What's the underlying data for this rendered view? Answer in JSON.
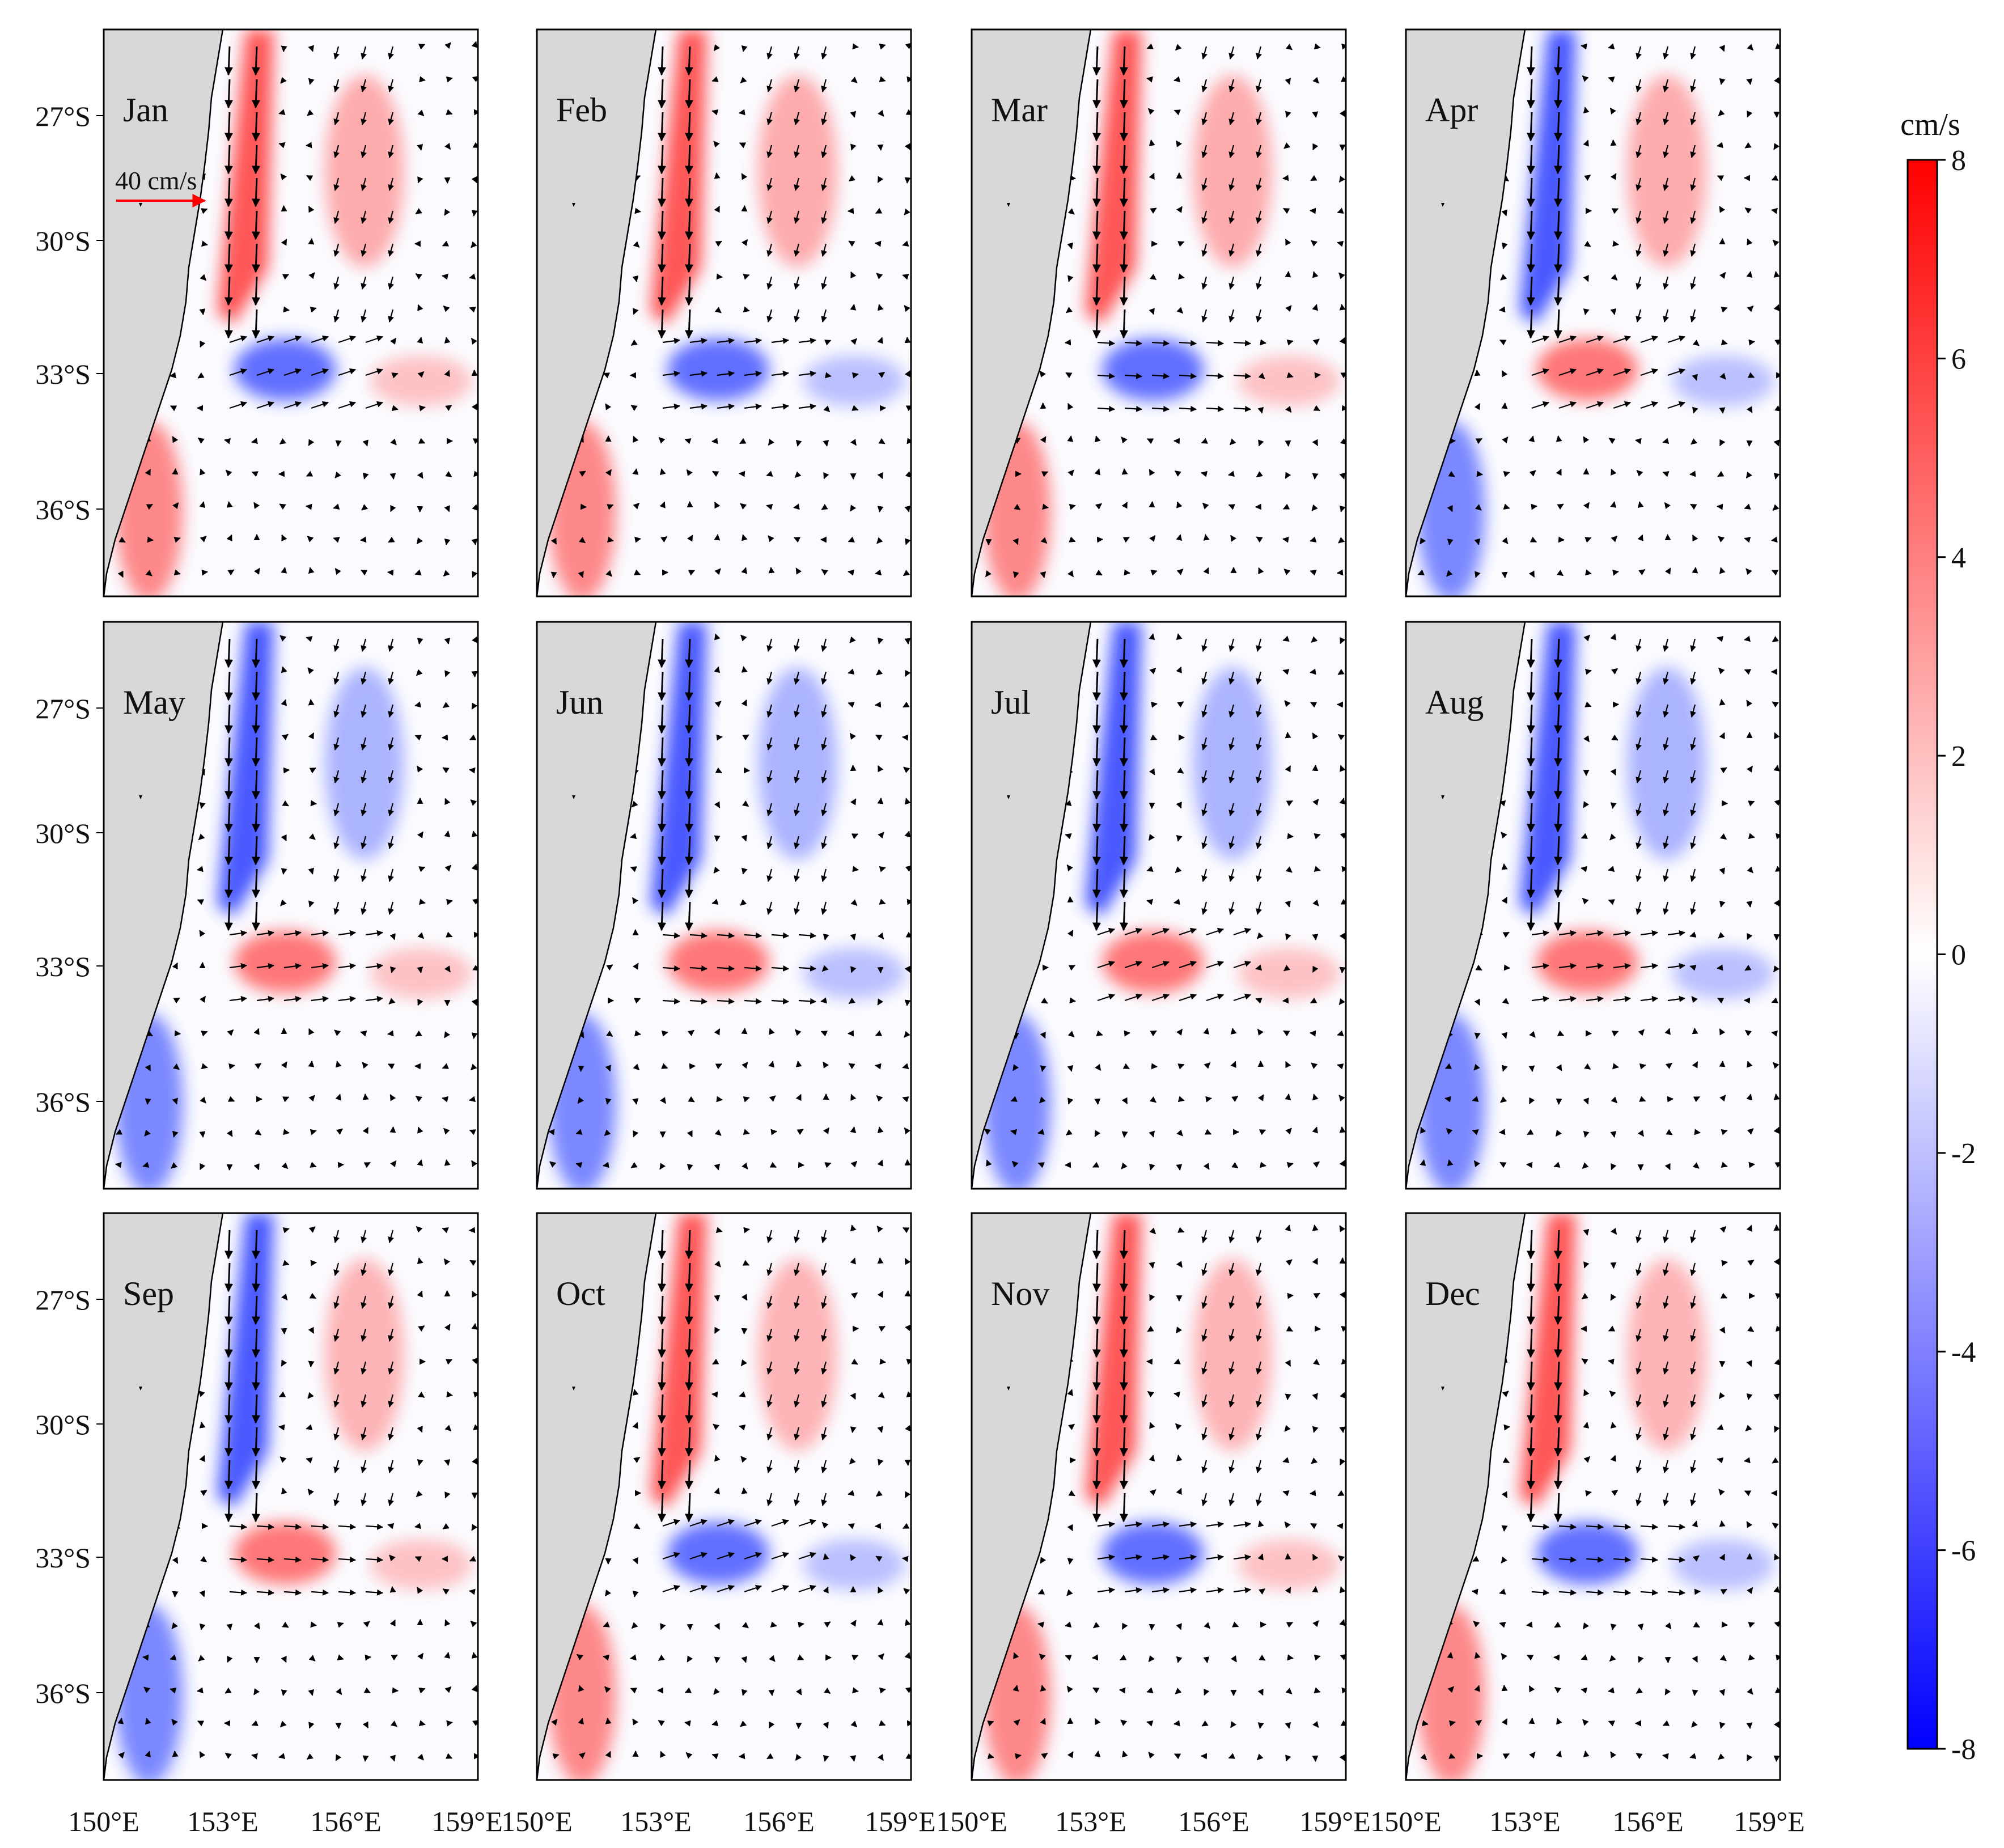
{
  "figure": {
    "panels": [
      {
        "month": "Jan"
      },
      {
        "month": "Feb"
      },
      {
        "month": "Mar"
      },
      {
        "month": "Apr"
      },
      {
        "month": "May"
      },
      {
        "month": "Jun"
      },
      {
        "month": "Jul"
      },
      {
        "month": "Aug"
      },
      {
        "month": "Sep"
      },
      {
        "month": "Oct"
      },
      {
        "month": "Nov"
      },
      {
        "month": "Dec"
      }
    ],
    "lat_ticks": [
      "27°S",
      "30°S",
      "33°S",
      "36°S"
    ],
    "lon_ticks": [
      "150°E",
      "153°E",
      "156°E",
      "159°E"
    ],
    "reference_vector": "40 cm/s",
    "reference_color": "#ff0000",
    "colorbar": {
      "unit": "cm/s",
      "ticks": [
        "8",
        "6",
        "4",
        "2",
        "0",
        "-2",
        "-4",
        "-6",
        "-8"
      ],
      "colors": {
        "max": "#ff0000",
        "mid": "#ffffff",
        "min": "#0000ff"
      }
    },
    "land_color": "#d8d8d8"
  }
}
